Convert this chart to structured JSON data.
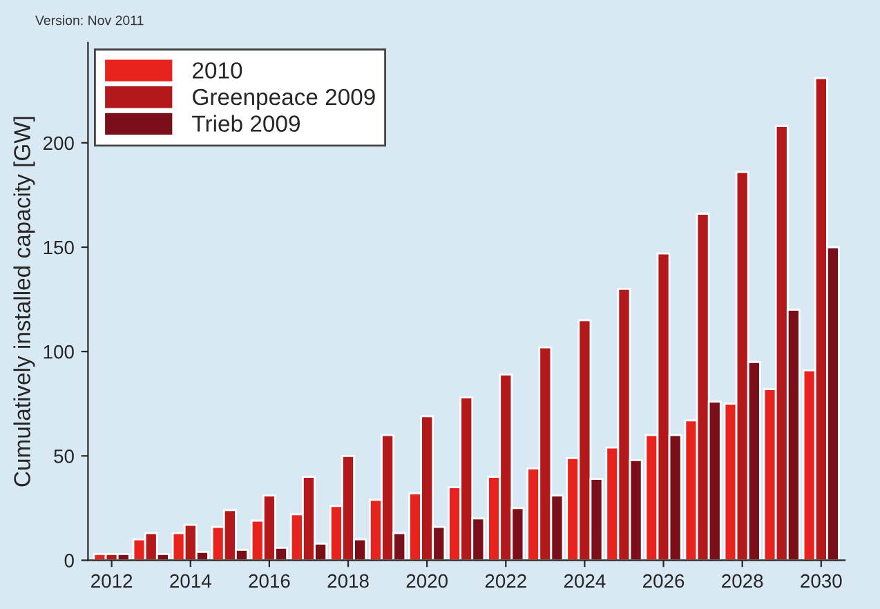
{
  "chart_data": {
    "type": "bar",
    "ylabel": "Cumulatively installed capacity [GW]",
    "annotations": [
      "Version: Nov 2011"
    ],
    "x": [
      2012,
      2013,
      2014,
      2015,
      2016,
      2017,
      2018,
      2019,
      2020,
      2021,
      2022,
      2023,
      2024,
      2025,
      2026,
      2027,
      2028,
      2029,
      2030
    ],
    "series": [
      {
        "name": "2010",
        "color": "#e8231e",
        "values": [
          3,
          10,
          13,
          16,
          19,
          22,
          26,
          29,
          32,
          35,
          40,
          44,
          49,
          54,
          60,
          67,
          75,
          82,
          91
        ]
      },
      {
        "name": "Greenpeace 2009",
        "color": "#b3191b",
        "values": [
          3,
          13,
          17,
          24,
          31,
          40,
          50,
          60,
          69,
          78,
          89,
          102,
          115,
          130,
          147,
          166,
          186,
          208,
          231
        ]
      },
      {
        "name": "Trieb 2009",
        "color": "#7a0f1a",
        "values": [
          3,
          3,
          4,
          5,
          6,
          8,
          10,
          13,
          16,
          20,
          25,
          31,
          39,
          48,
          60,
          76,
          95,
          120,
          150
        ]
      }
    ],
    "xlim": [
      2011.4,
      2030.6
    ],
    "xticks": [
      2012,
      2014,
      2016,
      2018,
      2020,
      2022,
      2024,
      2026,
      2028,
      2030
    ],
    "ylim": [
      0,
      248
    ],
    "yticks": [
      0,
      50,
      100,
      150,
      200
    ],
    "grid": false,
    "legend": "top left"
  }
}
